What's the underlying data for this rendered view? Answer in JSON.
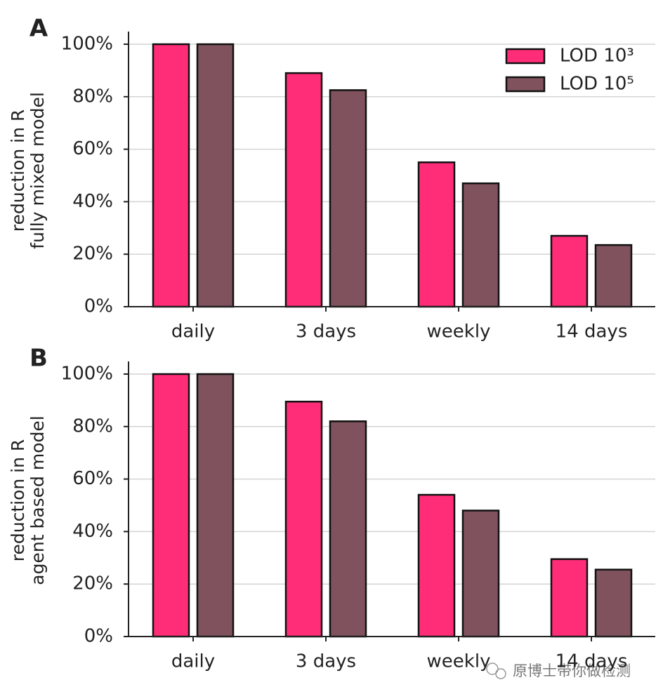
{
  "chart_data": [
    {
      "type": "bar",
      "panel": "A",
      "ylabel": [
        "reduction in R",
        "fully mixed model"
      ],
      "categories": [
        "daily",
        "3 days",
        "weekly",
        "14 days"
      ],
      "series": [
        {
          "name": "LOD 10³",
          "color": "#ff2d78",
          "values": [
            100,
            89,
            55,
            27
          ]
        },
        {
          "name": "LOD 10⁵",
          "color": "#7f525d",
          "values": [
            100,
            82.5,
            47,
            23.5
          ]
        }
      ],
      "ylim": [
        0,
        105
      ],
      "yticks": [
        {
          "value": 0,
          "label": "0%"
        },
        {
          "value": 20,
          "label": "20%"
        },
        {
          "value": 40,
          "label": "40%"
        },
        {
          "value": 60,
          "label": "60%"
        },
        {
          "value": 80,
          "label": "80%"
        },
        {
          "value": 100,
          "label": "100%"
        }
      ],
      "grid": true,
      "legend": "upper right"
    },
    {
      "type": "bar",
      "panel": "B",
      "ylabel": [
        "reduction in R",
        "agent based model"
      ],
      "categories": [
        "daily",
        "3 days",
        "weekly",
        "14 days"
      ],
      "series": [
        {
          "name": "LOD 10³",
          "color": "#ff2d78",
          "values": [
            100,
            89.5,
            54,
            29.5
          ]
        },
        {
          "name": "LOD 10⁵",
          "color": "#7f525d",
          "values": [
            100,
            82,
            48,
            25.5
          ]
        }
      ],
      "ylim": [
        0,
        105
      ],
      "yticks": [
        {
          "value": 0,
          "label": "0%"
        },
        {
          "value": 20,
          "label": "20%"
        },
        {
          "value": 40,
          "label": "40%"
        },
        {
          "value": 60,
          "label": "60%"
        },
        {
          "value": 80,
          "label": "80%"
        },
        {
          "value": 100,
          "label": "100%"
        }
      ],
      "grid": true
    }
  ],
  "watermark": "原博士带你做检测"
}
